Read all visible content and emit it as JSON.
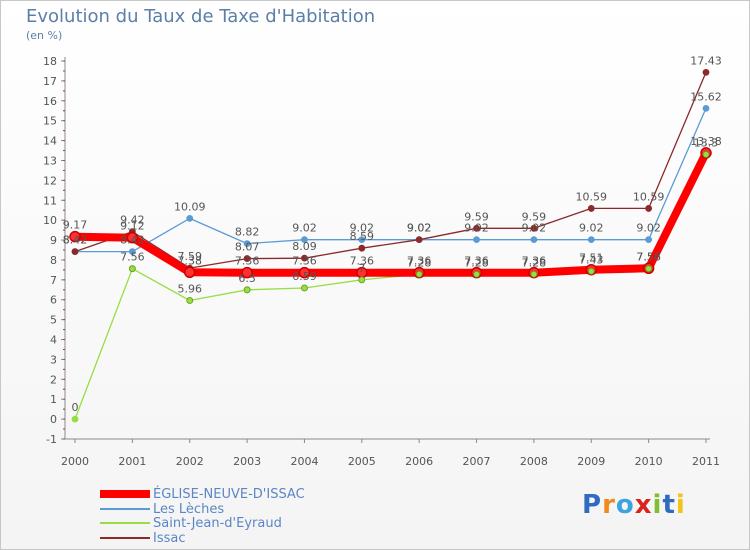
{
  "chart_data": {
    "type": "line",
    "title": "Evolution du Taux de Taxe d'Habitation",
    "subtitle": "(en %)",
    "x": [
      "2000",
      "2001",
      "2002",
      "2003",
      "2004",
      "2005",
      "2006",
      "2007",
      "2008",
      "2009",
      "2010",
      "2011"
    ],
    "ylim": [
      -1,
      18
    ],
    "yticks": [
      -1,
      0,
      1,
      2,
      3,
      4,
      5,
      6,
      7,
      8,
      9,
      10,
      11,
      12,
      13,
      14,
      15,
      16,
      17,
      18
    ],
    "grid": false,
    "legend_position": "bottom-left",
    "series": [
      {
        "name": "ÉGLISE-NEUVE-D'ISSAC",
        "color": "#ff0000",
        "values": [
          9.17,
          9.12,
          7.38,
          7.36,
          7.36,
          7.36,
          7.36,
          7.36,
          7.36,
          7.51,
          7.58,
          13.38
        ],
        "labels": [
          "9.17",
          "9.12",
          "7.38",
          "7.36",
          "7.36",
          "7.36",
          "7.36",
          "7.36",
          "7.36",
          "7.51",
          "7.58",
          "13.38"
        ]
      },
      {
        "name": "Les Lèches",
        "color": "#5b9bd5",
        "values": [
          8.42,
          8.42,
          10.09,
          8.82,
          9.02,
          9.02,
          9.02,
          9.02,
          9.02,
          9.02,
          9.02,
          15.62
        ],
        "labels": [
          "8.42",
          "8.42",
          "10.09",
          "8.82",
          "9.02",
          "9.02",
          "9.02",
          "9.02",
          "9.02",
          "9.02",
          "9.02",
          "15.62"
        ]
      },
      {
        "name": "Saint-Jean-d'Eyraud",
        "color": "#99dd44",
        "values": [
          0,
          7.56,
          5.96,
          6.5,
          6.59,
          7,
          7.28,
          7.28,
          7.28,
          7.43,
          7.56,
          13.3
        ],
        "labels": [
          "0",
          "7.56",
          "5.96",
          "6.5",
          "6.59",
          "7",
          "7.28",
          "7.28",
          "7.28",
          "7.43",
          "7.56",
          "13.3"
        ]
      },
      {
        "name": "Issac",
        "color": "#8b2a2a",
        "values": [
          8.42,
          9.42,
          7.59,
          8.07,
          8.09,
          8.59,
          9.02,
          9.59,
          9.59,
          10.59,
          10.59,
          17.43
        ],
        "labels": [
          "8.42",
          "9.42",
          "7.59",
          "8.07",
          "8.09",
          "8.59",
          "9.02",
          "9.59",
          "9.59",
          "10.59",
          "10.59",
          "17.43"
        ]
      }
    ]
  },
  "brand": {
    "letters": [
      "P",
      "r",
      "o",
      "x",
      "i",
      "t",
      "i"
    ],
    "colors": [
      "#2f6bc0",
      "#f08a1c",
      "#3aa3e0",
      "#d8231f",
      "#7fbf2f",
      "#2f6bc0",
      "#f0c419"
    ]
  }
}
